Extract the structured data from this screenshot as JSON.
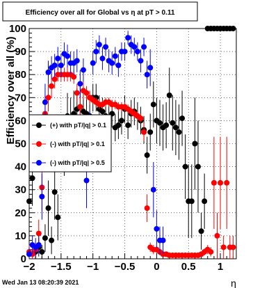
{
  "footer": {
    "timestamp": "Wed Jan 13 08:20:39 2021"
  },
  "chart_data": {
    "type": "scatter",
    "title": "Efficiency over all for Global vs   η at pT > 0.11",
    "xlabel": "η",
    "ylabel": "Efficiency over all (%)",
    "xlim": [
      -2,
      1.25
    ],
    "ylim": [
      0,
      100
    ],
    "xticks": [
      -2,
      -1.5,
      -1,
      -0.5,
      0,
      0.5,
      1
    ],
    "xtick_labels": [
      "−2",
      "−1.5",
      "−1",
      "−0.5",
      "0",
      "0.5",
      "1"
    ],
    "yticks": [
      0,
      10,
      20,
      30,
      40,
      50,
      60,
      70,
      80,
      90,
      100
    ],
    "ytick_labels": [
      "0",
      "10",
      "20",
      "30",
      "40",
      "50",
      "60",
      "70",
      "80",
      "90",
      "100"
    ],
    "grid": true,
    "legend_position": "middle-left",
    "series": [
      {
        "name": "(+) with pT/|q| > 0.1",
        "color": "#000000",
        "x": [
          -2.0,
          -1.95,
          -1.9,
          -1.85,
          -1.8,
          -1.75,
          -1.7,
          -1.65,
          -1.6,
          -1.55,
          -1.5,
          -1.45,
          -1.4,
          -1.35,
          -1.3,
          -1.25,
          -1.2,
          -1.15,
          -1.1,
          -1.05,
          -1.0,
          -0.95,
          -0.9,
          -0.85,
          -0.8,
          -0.75,
          -0.7,
          -0.65,
          -0.6,
          -0.55,
          -0.5,
          -0.45,
          -0.4,
          -0.35,
          -0.3,
          -0.25,
          -0.2,
          -0.15,
          -0.1,
          -0.05,
          0.0,
          0.05,
          0.1,
          0.15,
          0.2,
          0.25,
          0.3,
          0.35,
          0.4,
          0.45,
          0.5,
          0.55,
          0.6,
          0.65,
          0.7,
          0.75,
          0.8,
          0.85,
          0.9,
          0.95,
          1.0,
          1.05,
          1.1,
          1.15,
          1.2
        ],
        "y": [
          25,
          35,
          3,
          5,
          3,
          9,
          22,
          8,
          29,
          18,
          50,
          48,
          62,
          60,
          63,
          65,
          66,
          64,
          63,
          62,
          70,
          70,
          65,
          64,
          62,
          60,
          63,
          57,
          58,
          60,
          65,
          58,
          63,
          64,
          62,
          60,
          56,
          45,
          55,
          67,
          60,
          59,
          57,
          58,
          71,
          59,
          57,
          55,
          61,
          40,
          25,
          25,
          50,
          40,
          12,
          25,
          100,
          100,
          100,
          100,
          100,
          100,
          100,
          100,
          100
        ],
        "err": [
          12,
          12,
          3,
          4,
          3,
          6,
          12,
          6,
          12,
          10,
          12,
          12,
          10,
          10,
          10,
          9,
          9,
          9,
          9,
          8,
          6,
          6,
          6,
          6,
          6,
          6,
          6,
          6,
          6,
          6,
          6,
          6,
          6,
          6,
          6,
          6,
          6,
          8,
          8,
          10,
          10,
          10,
          10,
          10,
          12,
          12,
          12,
          12,
          12,
          14,
          16,
          16,
          20,
          20,
          8,
          12,
          0,
          0,
          0,
          0,
          0,
          0,
          0,
          0,
          0
        ]
      },
      {
        "name": "(-) with pT/|q| > 0.1",
        "color": "#ff0000",
        "x": [
          -2.0,
          -1.95,
          -1.9,
          -1.85,
          -1.8,
          -1.75,
          -1.7,
          -1.65,
          -1.6,
          -1.55,
          -1.5,
          -1.45,
          -1.4,
          -1.35,
          -1.3,
          -1.25,
          -1.2,
          -1.15,
          -1.1,
          -1.05,
          -1.0,
          -0.95,
          -0.9,
          -0.85,
          -0.8,
          -0.75,
          -0.7,
          -0.65,
          -0.6,
          -0.55,
          -0.5,
          -0.45,
          -0.4,
          -0.35,
          -0.3,
          -0.25,
          -0.2,
          -0.15,
          -0.1,
          -0.05,
          0.0,
          0.05,
          0.1,
          0.15,
          0.2,
          0.25,
          0.3,
          0.35,
          0.4,
          0.45,
          0.5,
          0.55,
          0.6,
          0.65,
          0.7,
          0.75,
          0.8,
          0.85,
          0.9,
          0.95,
          1.0,
          1.05,
          1.1,
          1.15,
          1.2
        ],
        "y": [
          3,
          2,
          4,
          11,
          31,
          63,
          70,
          75,
          78,
          80,
          80,
          80,
          80,
          80,
          79,
          72,
          66,
          73,
          72,
          70,
          69,
          68,
          67,
          67,
          68,
          68,
          67,
          67,
          66,
          66,
          66,
          65,
          64,
          63,
          62,
          61,
          55,
          22,
          5,
          4,
          4,
          3,
          2,
          2,
          1.5,
          1.5,
          1.5,
          1.5,
          1.5,
          1.5,
          1.5,
          1.5,
          1.5,
          1.5,
          2,
          3,
          4,
          3,
          33,
          10,
          33,
          5,
          33,
          5,
          5
        ],
        "err": [
          3,
          2,
          3,
          6,
          10,
          8,
          6,
          5,
          4,
          3,
          3,
          3,
          3,
          3,
          3,
          4,
          5,
          4,
          3,
          3,
          2,
          2,
          2,
          2,
          2,
          2,
          2,
          2,
          2,
          2,
          2,
          2,
          2,
          2,
          2,
          2,
          4,
          6,
          2,
          2,
          1.5,
          1.5,
          1,
          1,
          1,
          1,
          1,
          1,
          1,
          1,
          1,
          1,
          1,
          1,
          1,
          1.5,
          2,
          2,
          20,
          10,
          20,
          5,
          20,
          5,
          5
        ]
      },
      {
        "name": "(-) with pT/|q| > 0.5",
        "color": "#0000ff",
        "x": [
          -2.0,
          -1.95,
          -1.9,
          -1.85,
          -1.8,
          -1.75,
          -1.7,
          -1.65,
          -1.6,
          -1.55,
          -1.5,
          -1.45,
          -1.4,
          -1.35,
          -1.3,
          -1.25,
          -1.2,
          -1.15,
          -1.1,
          -1.05,
          -1.0,
          -0.95,
          -0.9,
          -0.85,
          -0.8,
          -0.75,
          -0.7,
          -0.65,
          -0.6,
          -0.55,
          -0.5,
          -0.45,
          -0.4,
          -0.35,
          -0.3,
          -0.25,
          -0.2,
          -0.15,
          -0.1,
          -0.05,
          0.0,
          0.05,
          0.1
        ],
        "y": [
          2,
          6,
          5,
          6,
          27,
          68,
          81,
          83,
          84,
          87,
          84,
          89,
          88,
          85,
          85,
          86,
          76,
          82,
          34,
          52,
          85,
          90,
          93,
          87,
          92,
          86,
          85,
          88,
          84,
          90,
          90,
          96,
          93,
          92,
          90,
          86,
          92,
          80,
          83,
          30,
          13,
          8,
          8
        ],
        "err": [
          3,
          4,
          4,
          4,
          10,
          8,
          5,
          5,
          5,
          5,
          5,
          5,
          5,
          5,
          5,
          5,
          6,
          5,
          12,
          12,
          5,
          5,
          4,
          5,
          4,
          5,
          5,
          4,
          5,
          4,
          4,
          3,
          4,
          4,
          4,
          5,
          4,
          6,
          8,
          12,
          8,
          6,
          6
        ]
      }
    ]
  }
}
